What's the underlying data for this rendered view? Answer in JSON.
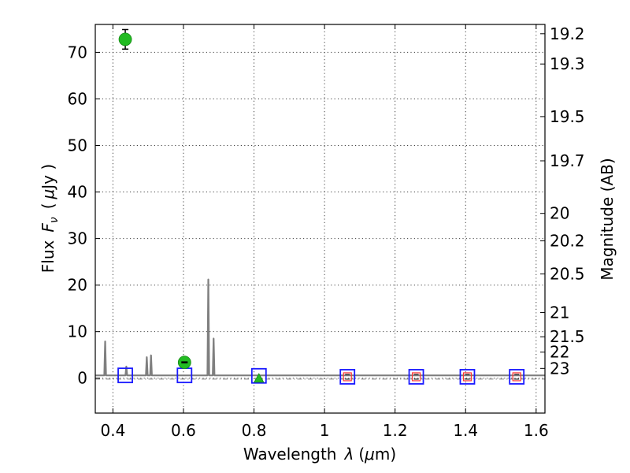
{
  "chart_data": {
    "type": "scatter",
    "xlabel_main": "Wavelength",
    "xlabel_symbol": "λ",
    "xlabel_unit_open": "(",
    "xlabel_unit_mu": "μ",
    "xlabel_unit_rest": "m)",
    "ylabel_main": "Flux",
    "ylabel_symbol": "F",
    "ylabel_subscript": "ν",
    "ylabel_unit_open": "(",
    "ylabel_unit_mu": "μ",
    "ylabel_unit_rest": "Jy )",
    "y2label": "Magnitude (AB)",
    "xlim": [
      0.35,
      1.625
    ],
    "ylim": [
      -7.5,
      76
    ],
    "x_ticks": [
      0.4,
      0.6,
      0.8,
      1.0,
      1.2,
      1.4,
      1.6
    ],
    "x_tick_labels": [
      "0.4",
      "0.6",
      "0.8",
      "1",
      "1.2",
      "1.4",
      "1.6"
    ],
    "y_ticks": [
      0,
      10,
      20,
      30,
      40,
      50,
      60,
      70
    ],
    "y_tick_labels": [
      "0",
      "10",
      "20",
      "30",
      "40",
      "50",
      "60",
      "70"
    ],
    "y2_ticks": [
      {
        "label": "19.2",
        "flux": 74.0
      },
      {
        "label": "19.3",
        "flux": 67.5
      },
      {
        "label": "19.5",
        "flux": 56.2
      },
      {
        "label": "19.7",
        "flux": 46.7
      },
      {
        "label": "20",
        "flux": 35.4
      },
      {
        "label": "20.2",
        "flux": 29.5
      },
      {
        "label": "20.5",
        "flux": 22.4
      },
      {
        "label": "21",
        "flux": 14.1
      },
      {
        "label": "21.5",
        "flux": 8.9
      },
      {
        "label": "22",
        "flux": 5.6
      },
      {
        "label": "23",
        "flux": 2.1
      }
    ],
    "grid": true,
    "spectrum": {
      "color": "#7f7f7f",
      "baseline": 0.6,
      "x_range": [
        0.35,
        1.625
      ],
      "lines": [
        {
          "x": 0.378,
          "peak": 7.9
        },
        {
          "x": 0.438,
          "peak": 2.5
        },
        {
          "x": 0.496,
          "peak": 4.5
        },
        {
          "x": 0.508,
          "peak": 4.9
        },
        {
          "x": 0.6705,
          "peak": 21.2
        },
        {
          "x": 0.6855,
          "peak": 8.5
        }
      ]
    },
    "reference_line": {
      "y": -0.2,
      "color": "#808080",
      "style": "dashdot"
    },
    "observed": {
      "color": "#22bb22",
      "points": [
        {
          "x": 0.435,
          "y": 72.8,
          "yerr": 2.1
        },
        {
          "x": 0.603,
          "y": 3.4,
          "yerr": 0.3
        }
      ]
    },
    "upper_limits": {
      "color": "#22bb22",
      "points": [
        {
          "x": 0.814,
          "y": -0.2
        }
      ]
    },
    "model_photometry": {
      "color": "#1a1aff",
      "points": [
        {
          "x": 0.435,
          "y": 0.6
        },
        {
          "x": 0.603,
          "y": 0.6
        },
        {
          "x": 0.814,
          "y": 0.5
        },
        {
          "x": 1.065,
          "y": 0.3
        },
        {
          "x": 1.26,
          "y": 0.3
        },
        {
          "x": 1.405,
          "y": 0.3
        },
        {
          "x": 1.545,
          "y": 0.3
        }
      ]
    },
    "nir_measurements": {
      "color": "#ff3333",
      "points": [
        {
          "x": 1.065,
          "y": 0.3
        },
        {
          "x": 1.26,
          "y": 0.3
        },
        {
          "x": 1.405,
          "y": 0.3
        },
        {
          "x": 1.545,
          "y": 0.3
        }
      ]
    }
  }
}
